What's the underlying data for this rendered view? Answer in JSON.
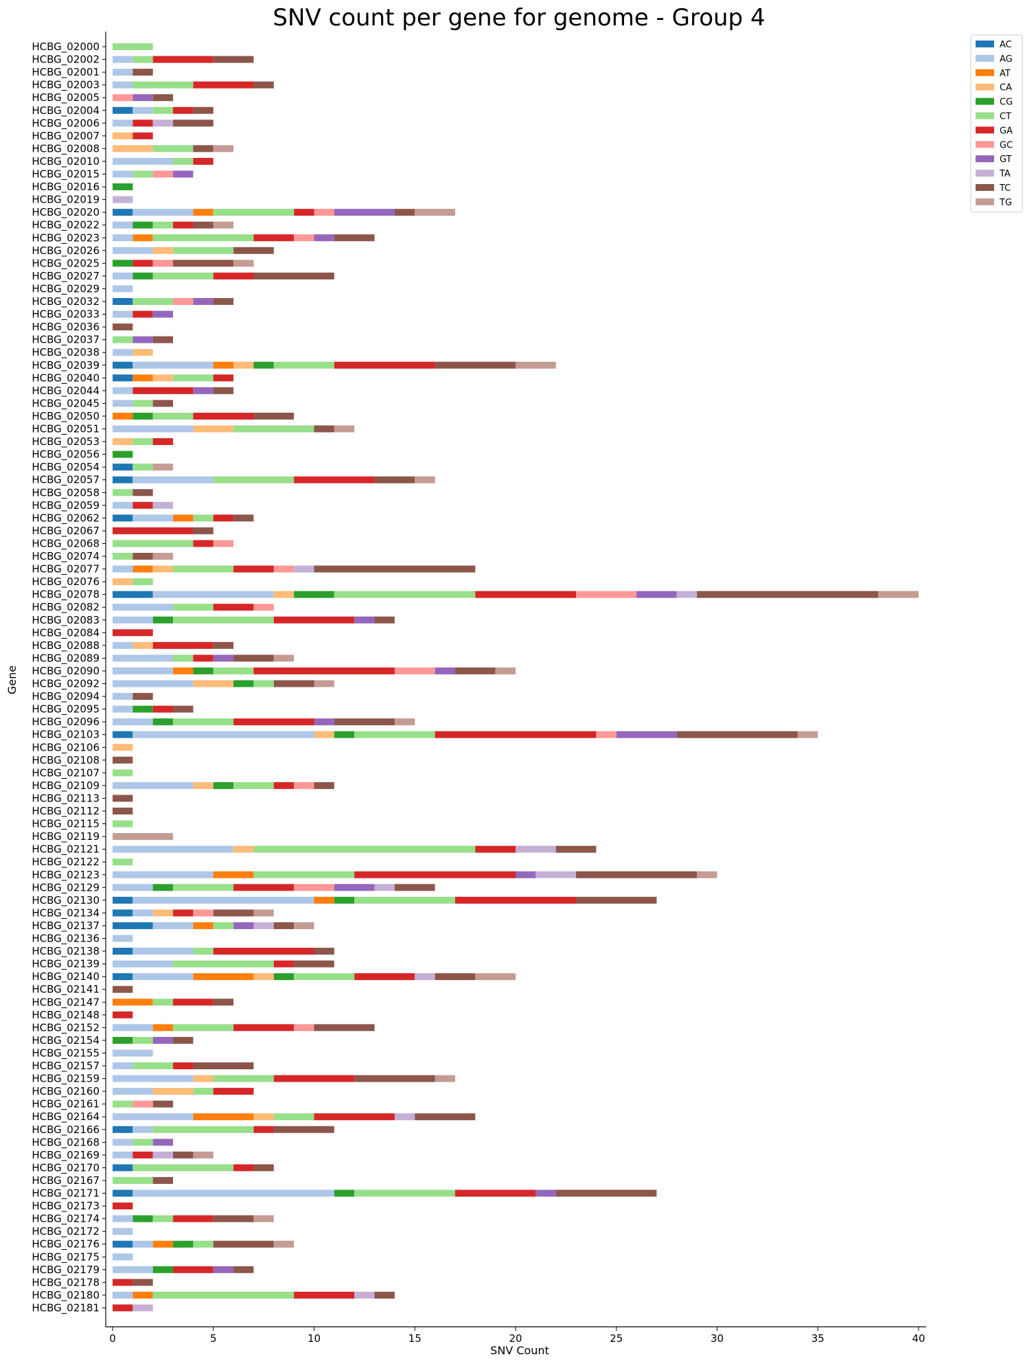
{
  "chart_data": {
    "type": "bar",
    "orientation": "horizontal",
    "stacked": true,
    "title": "SNV count per gene for genome - Group 4",
    "xlabel": "SNV Count",
    "ylabel": "Gene",
    "xlim": [
      0,
      40
    ],
    "xticks": [
      0,
      5,
      10,
      15,
      20,
      25,
      30,
      35,
      40
    ],
    "grid": false,
    "legend_position": "top-right outside",
    "series_names": [
      "AC",
      "AG",
      "AT",
      "CA",
      "CG",
      "CT",
      "GA",
      "GC",
      "GT",
      "TA",
      "TC",
      "TG"
    ],
    "series_colors": {
      "AC": "#1f77b4",
      "AG": "#aec7e8",
      "AT": "#ff7f0e",
      "CA": "#ffbb78",
      "CG": "#2ca02c",
      "CT": "#98df8a",
      "GA": "#d62728",
      "GC": "#ff9896",
      "GT": "#9467bd",
      "TA": "#c5b0d5",
      "TC": "#8c564b",
      "TG": "#c49c94"
    },
    "genes": [
      {
        "gene": "HCBG_02000",
        "counts": {
          "CT": 2
        }
      },
      {
        "gene": "HCBG_02002",
        "counts": {
          "AG": 1,
          "CT": 1,
          "GA": 3,
          "TC": 2
        }
      },
      {
        "gene": "HCBG_02001",
        "counts": {
          "AG": 1,
          "TC": 1
        }
      },
      {
        "gene": "HCBG_02003",
        "counts": {
          "AG": 1,
          "CT": 3,
          "GA": 3,
          "TC": 1
        }
      },
      {
        "gene": "HCBG_02005",
        "counts": {
          "GC": 1,
          "GT": 1,
          "TC": 1
        }
      },
      {
        "gene": "HCBG_02004",
        "counts": {
          "AC": 1,
          "AG": 1,
          "CT": 1,
          "GA": 1,
          "TC": 1
        }
      },
      {
        "gene": "HCBG_02006",
        "counts": {
          "AG": 1,
          "GA": 1,
          "TA": 1,
          "TC": 2
        }
      },
      {
        "gene": "HCBG_02007",
        "counts": {
          "CA": 1,
          "GA": 1
        }
      },
      {
        "gene": "HCBG_02008",
        "counts": {
          "CA": 2,
          "CT": 2,
          "TC": 1,
          "TG": 1
        }
      },
      {
        "gene": "HCBG_02010",
        "counts": {
          "AG": 3,
          "CT": 1,
          "GA": 1
        }
      },
      {
        "gene": "HCBG_02015",
        "counts": {
          "AG": 1,
          "CT": 1,
          "GC": 1,
          "GT": 1
        }
      },
      {
        "gene": "HCBG_02016",
        "counts": {
          "CG": 1
        }
      },
      {
        "gene": "HCBG_02019",
        "counts": {
          "TA": 1
        }
      },
      {
        "gene": "HCBG_02020",
        "counts": {
          "AC": 1,
          "AG": 3,
          "AT": 1,
          "CT": 4,
          "GA": 1,
          "GC": 1,
          "GT": 3,
          "TC": 1,
          "TG": 2
        }
      },
      {
        "gene": "HCBG_02022",
        "counts": {
          "AG": 1,
          "CG": 1,
          "CT": 1,
          "GA": 1,
          "TC": 1,
          "TG": 1
        }
      },
      {
        "gene": "HCBG_02023",
        "counts": {
          "AG": 1,
          "AT": 1,
          "CT": 5,
          "GA": 2,
          "GC": 1,
          "GT": 1,
          "TC": 2
        }
      },
      {
        "gene": "HCBG_02026",
        "counts": {
          "AG": 2,
          "CA": 1,
          "CT": 3,
          "TC": 2
        }
      },
      {
        "gene": "HCBG_02025",
        "counts": {
          "CG": 1,
          "GA": 1,
          "GC": 1,
          "TC": 3,
          "TG": 1
        }
      },
      {
        "gene": "HCBG_02027",
        "counts": {
          "AG": 1,
          "CG": 1,
          "CT": 3,
          "GA": 2,
          "TC": 4
        }
      },
      {
        "gene": "HCBG_02029",
        "counts": {
          "AG": 1
        }
      },
      {
        "gene": "HCBG_02032",
        "counts": {
          "AC": 1,
          "CT": 2,
          "GC": 1,
          "GT": 1,
          "TC": 1
        }
      },
      {
        "gene": "HCBG_02033",
        "counts": {
          "AG": 1,
          "GA": 1,
          "GT": 1
        }
      },
      {
        "gene": "HCBG_02036",
        "counts": {
          "TC": 1
        }
      },
      {
        "gene": "HCBG_02037",
        "counts": {
          "CT": 1,
          "GT": 1,
          "TC": 1
        }
      },
      {
        "gene": "HCBG_02038",
        "counts": {
          "AG": 1,
          "CA": 1
        }
      },
      {
        "gene": "HCBG_02039",
        "counts": {
          "AC": 1,
          "AG": 4,
          "AT": 1,
          "CA": 1,
          "CG": 1,
          "CT": 3,
          "GA": 5,
          "TC": 4,
          "TG": 2
        }
      },
      {
        "gene": "HCBG_02040",
        "counts": {
          "AC": 1,
          "AT": 1,
          "CA": 1,
          "CT": 2,
          "GA": 1
        }
      },
      {
        "gene": "HCBG_02044",
        "counts": {
          "AG": 1,
          "GA": 3,
          "GT": 1,
          "TC": 1
        }
      },
      {
        "gene": "HCBG_02045",
        "counts": {
          "AG": 1,
          "CT": 1,
          "TC": 1
        }
      },
      {
        "gene": "HCBG_02050",
        "counts": {
          "AT": 1,
          "CG": 1,
          "CT": 2,
          "GA": 3,
          "TC": 2
        }
      },
      {
        "gene": "HCBG_02051",
        "counts": {
          "AG": 4,
          "CA": 2,
          "CT": 4,
          "TC": 1,
          "TG": 1
        }
      },
      {
        "gene": "HCBG_02053",
        "counts": {
          "CA": 1,
          "CT": 1,
          "GA": 1
        }
      },
      {
        "gene": "HCBG_02056",
        "counts": {
          "CG": 1
        }
      },
      {
        "gene": "HCBG_02054",
        "counts": {
          "AC": 1,
          "CT": 1,
          "TG": 1
        }
      },
      {
        "gene": "HCBG_02057",
        "counts": {
          "AC": 1,
          "AG": 4,
          "CT": 4,
          "GA": 4,
          "TC": 2,
          "TG": 1
        }
      },
      {
        "gene": "HCBG_02058",
        "counts": {
          "CT": 1,
          "TC": 1
        }
      },
      {
        "gene": "HCBG_02059",
        "counts": {
          "AG": 1,
          "GA": 1,
          "TA": 1
        }
      },
      {
        "gene": "HCBG_02062",
        "counts": {
          "AC": 1,
          "AG": 2,
          "AT": 1,
          "CT": 1,
          "GA": 1,
          "TC": 1
        }
      },
      {
        "gene": "HCBG_02067",
        "counts": {
          "GA": 4,
          "TC": 1
        }
      },
      {
        "gene": "HCBG_02068",
        "counts": {
          "CT": 4,
          "GA": 1,
          "GC": 1
        }
      },
      {
        "gene": "HCBG_02074",
        "counts": {
          "CT": 1,
          "TC": 1,
          "TG": 1
        }
      },
      {
        "gene": "HCBG_02077",
        "counts": {
          "AG": 1,
          "AT": 1,
          "CA": 1,
          "CT": 3,
          "GA": 2,
          "GC": 1,
          "TA": 1,
          "TC": 8
        }
      },
      {
        "gene": "HCBG_02076",
        "counts": {
          "CA": 1,
          "CT": 1
        }
      },
      {
        "gene": "HCBG_02078",
        "counts": {
          "AC": 2,
          "AG": 6,
          "CA": 1,
          "CG": 2,
          "CT": 7,
          "GA": 5,
          "GC": 3,
          "GT": 2,
          "TA": 1,
          "TC": 9,
          "TG": 2
        }
      },
      {
        "gene": "HCBG_02082",
        "counts": {
          "AG": 3,
          "CT": 2,
          "GA": 2,
          "GC": 1
        }
      },
      {
        "gene": "HCBG_02083",
        "counts": {
          "AG": 2,
          "CG": 1,
          "CT": 5,
          "GA": 4,
          "GT": 1,
          "TC": 1
        }
      },
      {
        "gene": "HCBG_02084",
        "counts": {
          "GA": 2
        }
      },
      {
        "gene": "HCBG_02088",
        "counts": {
          "AG": 1,
          "CA": 1,
          "GA": 3,
          "TC": 1
        }
      },
      {
        "gene": "HCBG_02089",
        "counts": {
          "AG": 3,
          "CT": 1,
          "GA": 1,
          "GT": 1,
          "TC": 2,
          "TG": 1
        }
      },
      {
        "gene": "HCBG_02090",
        "counts": {
          "AG": 3,
          "AT": 1,
          "CG": 1,
          "CT": 2,
          "GA": 7,
          "GC": 2,
          "GT": 1,
          "TC": 2,
          "TG": 1
        }
      },
      {
        "gene": "HCBG_02092",
        "counts": {
          "AG": 4,
          "CA": 2,
          "CG": 1,
          "CT": 1,
          "TC": 2,
          "TG": 1
        }
      },
      {
        "gene": "HCBG_02094",
        "counts": {
          "AG": 1,
          "TC": 1
        }
      },
      {
        "gene": "HCBG_02095",
        "counts": {
          "AG": 1,
          "CG": 1,
          "GA": 1,
          "TC": 1
        }
      },
      {
        "gene": "HCBG_02096",
        "counts": {
          "AG": 2,
          "CG": 1,
          "CT": 3,
          "GA": 4,
          "GT": 1,
          "TC": 3,
          "TG": 1
        }
      },
      {
        "gene": "HCBG_02103",
        "counts": {
          "AC": 1,
          "AG": 9,
          "CA": 1,
          "CG": 1,
          "CT": 4,
          "GA": 8,
          "GC": 1,
          "GT": 3,
          "TC": 6,
          "TG": 1
        }
      },
      {
        "gene": "HCBG_02106",
        "counts": {
          "CA": 1
        }
      },
      {
        "gene": "HCBG_02108",
        "counts": {
          "TC": 1
        }
      },
      {
        "gene": "HCBG_02107",
        "counts": {
          "CT": 1
        }
      },
      {
        "gene": "HCBG_02109",
        "counts": {
          "AG": 4,
          "CA": 1,
          "CG": 1,
          "CT": 2,
          "GA": 1,
          "GC": 1,
          "TC": 1
        }
      },
      {
        "gene": "HCBG_02113",
        "counts": {
          "TC": 1
        }
      },
      {
        "gene": "HCBG_02112",
        "counts": {
          "TC": 1
        }
      },
      {
        "gene": "HCBG_02115",
        "counts": {
          "CT": 1
        }
      },
      {
        "gene": "HCBG_02119",
        "counts": {
          "TG": 3
        }
      },
      {
        "gene": "HCBG_02121",
        "counts": {
          "AG": 6,
          "CA": 1,
          "CT": 11,
          "GA": 2,
          "TA": 2,
          "TC": 2
        }
      },
      {
        "gene": "HCBG_02122",
        "counts": {
          "CT": 1
        }
      },
      {
        "gene": "HCBG_02123",
        "counts": {
          "AG": 5,
          "AT": 2,
          "CT": 5,
          "GA": 8,
          "GT": 1,
          "TA": 2,
          "TC": 6,
          "TG": 1
        }
      },
      {
        "gene": "HCBG_02129",
        "counts": {
          "AG": 2,
          "CG": 1,
          "CT": 3,
          "GA": 3,
          "GC": 2,
          "GT": 2,
          "TA": 1,
          "TC": 2
        }
      },
      {
        "gene": "HCBG_02130",
        "counts": {
          "AC": 1,
          "AG": 9,
          "AT": 1,
          "CG": 1,
          "CT": 5,
          "GA": 6,
          "TC": 4
        }
      },
      {
        "gene": "HCBG_02134",
        "counts": {
          "AC": 1,
          "AG": 1,
          "CA": 1,
          "GA": 1,
          "GC": 1,
          "TC": 2,
          "TG": 1
        }
      },
      {
        "gene": "HCBG_02137",
        "counts": {
          "AC": 2,
          "AG": 2,
          "AT": 1,
          "CT": 1,
          "GT": 1,
          "TA": 1,
          "TC": 1,
          "TG": 1
        }
      },
      {
        "gene": "HCBG_02136",
        "counts": {
          "AG": 1
        }
      },
      {
        "gene": "HCBG_02138",
        "counts": {
          "AC": 1,
          "AG": 3,
          "CT": 1,
          "GA": 5,
          "TC": 1
        }
      },
      {
        "gene": "HCBG_02139",
        "counts": {
          "AG": 3,
          "CT": 5,
          "GA": 1,
          "TC": 2
        }
      },
      {
        "gene": "HCBG_02140",
        "counts": {
          "AC": 1,
          "AG": 3,
          "AT": 3,
          "CA": 1,
          "CG": 1,
          "CT": 3,
          "GA": 3,
          "TA": 1,
          "TC": 2,
          "TG": 2
        }
      },
      {
        "gene": "HCBG_02141",
        "counts": {
          "TC": 1
        }
      },
      {
        "gene": "HCBG_02147",
        "counts": {
          "AT": 2,
          "CT": 1,
          "GA": 2,
          "TC": 1
        }
      },
      {
        "gene": "HCBG_02148",
        "counts": {
          "GA": 1
        }
      },
      {
        "gene": "HCBG_02152",
        "counts": {
          "AG": 2,
          "AT": 1,
          "CT": 3,
          "GA": 3,
          "GC": 1,
          "TC": 3
        }
      },
      {
        "gene": "HCBG_02154",
        "counts": {
          "CG": 1,
          "CT": 1,
          "GT": 1,
          "TC": 1
        }
      },
      {
        "gene": "HCBG_02155",
        "counts": {
          "AG": 2
        }
      },
      {
        "gene": "HCBG_02157",
        "counts": {
          "AG": 1,
          "CT": 2,
          "GA": 1,
          "TC": 3
        }
      },
      {
        "gene": "HCBG_02159",
        "counts": {
          "AG": 4,
          "CA": 1,
          "CT": 3,
          "GA": 4,
          "TC": 4,
          "TG": 1
        }
      },
      {
        "gene": "HCBG_02160",
        "counts": {
          "AG": 2,
          "CA": 2,
          "CT": 1,
          "GA": 2
        }
      },
      {
        "gene": "HCBG_02161",
        "counts": {
          "CT": 1,
          "GC": 1,
          "TC": 1
        }
      },
      {
        "gene": "HCBG_02164",
        "counts": {
          "AG": 4,
          "AT": 3,
          "CA": 1,
          "CT": 2,
          "GA": 4,
          "TA": 1,
          "TC": 3
        }
      },
      {
        "gene": "HCBG_02166",
        "counts": {
          "AC": 1,
          "AG": 1,
          "CT": 5,
          "GA": 1,
          "TC": 3
        }
      },
      {
        "gene": "HCBG_02168",
        "counts": {
          "AG": 1,
          "CT": 1,
          "GT": 1
        }
      },
      {
        "gene": "HCBG_02169",
        "counts": {
          "AG": 1,
          "GA": 1,
          "TA": 1,
          "TC": 1,
          "TG": 1
        }
      },
      {
        "gene": "HCBG_02170",
        "counts": {
          "AC": 1,
          "CT": 5,
          "GA": 1,
          "TC": 1
        }
      },
      {
        "gene": "HCBG_02167",
        "counts": {
          "CT": 2,
          "TC": 1
        }
      },
      {
        "gene": "HCBG_02171",
        "counts": {
          "AC": 1,
          "AG": 10,
          "CG": 1,
          "CT": 5,
          "GA": 4,
          "GT": 1,
          "TC": 5
        }
      },
      {
        "gene": "HCBG_02173",
        "counts": {
          "GA": 1
        }
      },
      {
        "gene": "HCBG_02174",
        "counts": {
          "AG": 1,
          "CG": 1,
          "CT": 1,
          "GA": 2,
          "TC": 2,
          "TG": 1
        }
      },
      {
        "gene": "HCBG_02172",
        "counts": {
          "AG": 1
        }
      },
      {
        "gene": "HCBG_02176",
        "counts": {
          "AC": 1,
          "AG": 1,
          "AT": 1,
          "CG": 1,
          "CT": 1,
          "TC": 3,
          "TG": 1
        }
      },
      {
        "gene": "HCBG_02175",
        "counts": {
          "AG": 1
        }
      },
      {
        "gene": "HCBG_02179",
        "counts": {
          "AG": 2,
          "CG": 1,
          "GA": 2,
          "GT": 1,
          "TC": 1
        }
      },
      {
        "gene": "HCBG_02178",
        "counts": {
          "GA": 1,
          "TC": 1
        }
      },
      {
        "gene": "HCBG_02180",
        "counts": {
          "AG": 1,
          "AT": 1,
          "CT": 7,
          "GA": 3,
          "TA": 1,
          "TC": 1
        }
      },
      {
        "gene": "HCBG_02181",
        "counts": {
          "GA": 1,
          "TA": 1
        }
      }
    ]
  }
}
